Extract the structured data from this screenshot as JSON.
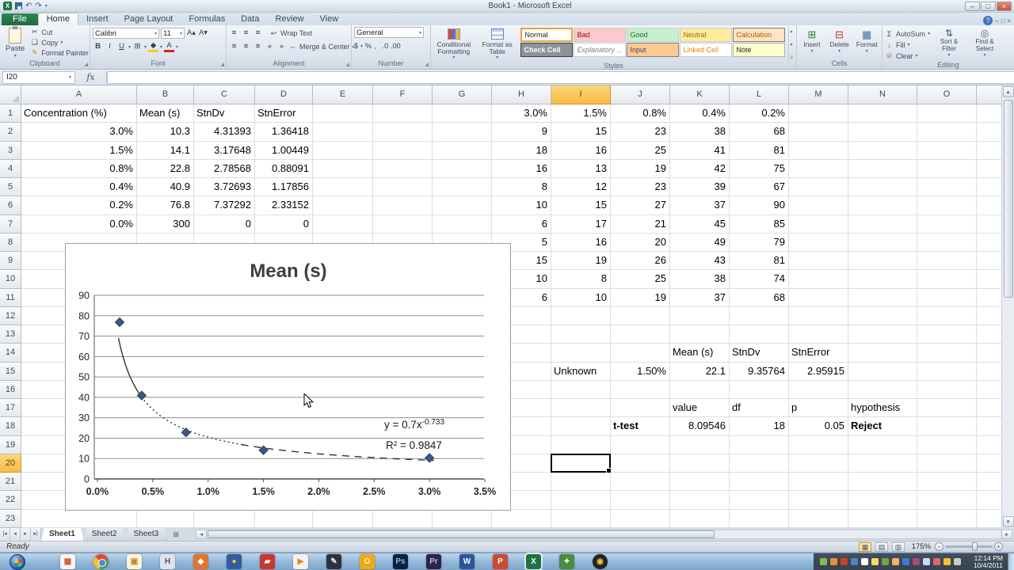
{
  "window": {
    "title": "Book1 - Microsoft Excel"
  },
  "icons": {
    "undo": "↶",
    "redo": "↷",
    "dropdown": "▾",
    "dialog_launcher": "◢",
    "cut": "✂",
    "copy": "❏",
    "format_painter": "✎",
    "bold": "B",
    "italic": "I",
    "underline": "U",
    "borders": "⊞",
    "align": "≡",
    "indent_left": "«",
    "indent_right": "»",
    "wrap": "↩",
    "merge": "⇔",
    "dollar": "$",
    "percent": "%",
    "comma": ",",
    "inc_decimal": ".0",
    "dec_decimal": ".00",
    "autosum": "Σ",
    "fill": "↓",
    "clear": "⊘",
    "sort": "⇅",
    "find": "◎",
    "insert_cells": "⊞",
    "delete_cells": "⊟",
    "format_cells": "▦",
    "help": "?",
    "minimize": "–",
    "maximize": "□",
    "close": "×",
    "up": "▴",
    "down": "▾",
    "left": "◂",
    "right": "▸",
    "tab_first": "|◂",
    "tab_prev": "◂",
    "tab_next": "▸",
    "tab_last": "▸|",
    "add_sheet": "⊞",
    "view_normal": "▦",
    "view_layout": "▤",
    "view_break": "▥",
    "zoom_out": "−",
    "zoom_in": "+",
    "fx": "fx",
    "grow_font": "A▴",
    "shrink_font": "A▾"
  },
  "ribbon": {
    "file_tab": "File",
    "tabs": [
      "Home",
      "Insert",
      "Page Layout",
      "Formulas",
      "Data",
      "Review",
      "View"
    ],
    "active_tab": "Home",
    "clipboard": {
      "paste": "Paste",
      "cut": "Cut",
      "copy": "Copy",
      "format_painter": "Format Painter",
      "label": "Clipboard"
    },
    "font": {
      "name": "Calibri",
      "size": "11",
      "label": "Font"
    },
    "alignment": {
      "wrap": "Wrap Text",
      "merge": "Merge & Center",
      "label": "Alignment"
    },
    "number": {
      "format": "General",
      "label": "Number"
    },
    "styles": {
      "conditional_formatting": "Conditional Formatting",
      "format_as_table": "Format as Table",
      "label": "Styles",
      "gallery": [
        "Normal",
        "Bad",
        "Good",
        "Neutral",
        "Calculation",
        "Check Cell",
        "Explanatory ...",
        "Input",
        "Linked Cell",
        "Note"
      ]
    },
    "cells": {
      "insert": "Insert",
      "delete": "Delete",
      "format": "Format",
      "label": "Cells"
    },
    "editing": {
      "autosum": "AutoSum",
      "fill": "Fill",
      "clear": "Clear",
      "sort": "Sort & Filter",
      "find": "Find & Select",
      "label": "Editing"
    }
  },
  "formula_bar": {
    "name_box": "I20",
    "content": ""
  },
  "grid": {
    "columns": [
      "A",
      "B",
      "C",
      "D",
      "E",
      "F",
      "G",
      "H",
      "I",
      "J",
      "K",
      "L",
      "M",
      "N",
      "O"
    ],
    "visible_rows": 23,
    "selected_cell": "I20",
    "selected_column": "I",
    "selected_row": 20,
    "cells": [
      {
        "c": "A",
        "r": 1,
        "v": "Concentration (%)",
        "a": "l"
      },
      {
        "c": "B",
        "r": 1,
        "v": "Mean (s)",
        "a": "l"
      },
      {
        "c": "C",
        "r": 1,
        "v": "StnDv",
        "a": "l"
      },
      {
        "c": "D",
        "r": 1,
        "v": "StnError",
        "a": "l"
      },
      {
        "c": "A",
        "r": 2,
        "v": "3.0%",
        "a": "r"
      },
      {
        "c": "B",
        "r": 2,
        "v": "10.3",
        "a": "r"
      },
      {
        "c": "C",
        "r": 2,
        "v": "4.31393",
        "a": "r"
      },
      {
        "c": "D",
        "r": 2,
        "v": "1.36418",
        "a": "r"
      },
      {
        "c": "A",
        "r": 3,
        "v": "1.5%",
        "a": "r"
      },
      {
        "c": "B",
        "r": 3,
        "v": "14.1",
        "a": "r"
      },
      {
        "c": "C",
        "r": 3,
        "v": "3.17648",
        "a": "r"
      },
      {
        "c": "D",
        "r": 3,
        "v": "1.00449",
        "a": "r"
      },
      {
        "c": "A",
        "r": 4,
        "v": "0.8%",
        "a": "r"
      },
      {
        "c": "B",
        "r": 4,
        "v": "22.8",
        "a": "r"
      },
      {
        "c": "C",
        "r": 4,
        "v": "2.78568",
        "a": "r"
      },
      {
        "c": "D",
        "r": 4,
        "v": "0.88091",
        "a": "r"
      },
      {
        "c": "A",
        "r": 5,
        "v": "0.4%",
        "a": "r"
      },
      {
        "c": "B",
        "r": 5,
        "v": "40.9",
        "a": "r"
      },
      {
        "c": "C",
        "r": 5,
        "v": "3.72693",
        "a": "r"
      },
      {
        "c": "D",
        "r": 5,
        "v": "1.17856",
        "a": "r"
      },
      {
        "c": "A",
        "r": 6,
        "v": "0.2%",
        "a": "r"
      },
      {
        "c": "B",
        "r": 6,
        "v": "76.8",
        "a": "r"
      },
      {
        "c": "C",
        "r": 6,
        "v": "7.37292",
        "a": "r"
      },
      {
        "c": "D",
        "r": 6,
        "v": "2.33152",
        "a": "r"
      },
      {
        "c": "A",
        "r": 7,
        "v": "0.0%",
        "a": "r"
      },
      {
        "c": "B",
        "r": 7,
        "v": "300",
        "a": "r"
      },
      {
        "c": "C",
        "r": 7,
        "v": "0",
        "a": "r"
      },
      {
        "c": "D",
        "r": 7,
        "v": "0",
        "a": "r"
      },
      {
        "c": "H",
        "r": 1,
        "v": "3.0%",
        "a": "r"
      },
      {
        "c": "I",
        "r": 1,
        "v": "1.5%",
        "a": "r"
      },
      {
        "c": "J",
        "r": 1,
        "v": "0.8%",
        "a": "r"
      },
      {
        "c": "K",
        "r": 1,
        "v": "0.4%",
        "a": "r"
      },
      {
        "c": "L",
        "r": 1,
        "v": "0.2%",
        "a": "r"
      },
      {
        "c": "H",
        "r": 2,
        "v": "9",
        "a": "r"
      },
      {
        "c": "I",
        "r": 2,
        "v": "15",
        "a": "r"
      },
      {
        "c": "J",
        "r": 2,
        "v": "23",
        "a": "r"
      },
      {
        "c": "K",
        "r": 2,
        "v": "38",
        "a": "r"
      },
      {
        "c": "L",
        "r": 2,
        "v": "68",
        "a": "r"
      },
      {
        "c": "H",
        "r": 3,
        "v": "18",
        "a": "r"
      },
      {
        "c": "I",
        "r": 3,
        "v": "16",
        "a": "r"
      },
      {
        "c": "J",
        "r": 3,
        "v": "25",
        "a": "r"
      },
      {
        "c": "K",
        "r": 3,
        "v": "41",
        "a": "r"
      },
      {
        "c": "L",
        "r": 3,
        "v": "81",
        "a": "r"
      },
      {
        "c": "H",
        "r": 4,
        "v": "16",
        "a": "r"
      },
      {
        "c": "I",
        "r": 4,
        "v": "13",
        "a": "r"
      },
      {
        "c": "J",
        "r": 4,
        "v": "19",
        "a": "r"
      },
      {
        "c": "K",
        "r": 4,
        "v": "42",
        "a": "r"
      },
      {
        "c": "L",
        "r": 4,
        "v": "75",
        "a": "r"
      },
      {
        "c": "H",
        "r": 5,
        "v": "8",
        "a": "r"
      },
      {
        "c": "I",
        "r": 5,
        "v": "12",
        "a": "r"
      },
      {
        "c": "J",
        "r": 5,
        "v": "23",
        "a": "r"
      },
      {
        "c": "K",
        "r": 5,
        "v": "39",
        "a": "r"
      },
      {
        "c": "L",
        "r": 5,
        "v": "67",
        "a": "r"
      },
      {
        "c": "H",
        "r": 6,
        "v": "10",
        "a": "r"
      },
      {
        "c": "I",
        "r": 6,
        "v": "15",
        "a": "r"
      },
      {
        "c": "J",
        "r": 6,
        "v": "27",
        "a": "r"
      },
      {
        "c": "K",
        "r": 6,
        "v": "37",
        "a": "r"
      },
      {
        "c": "L",
        "r": 6,
        "v": "90",
        "a": "r"
      },
      {
        "c": "H",
        "r": 7,
        "v": "6",
        "a": "r"
      },
      {
        "c": "I",
        "r": 7,
        "v": "17",
        "a": "r"
      },
      {
        "c": "J",
        "r": 7,
        "v": "21",
        "a": "r"
      },
      {
        "c": "K",
        "r": 7,
        "v": "45",
        "a": "r"
      },
      {
        "c": "L",
        "r": 7,
        "v": "85",
        "a": "r"
      },
      {
        "c": "H",
        "r": 8,
        "v": "5",
        "a": "r"
      },
      {
        "c": "I",
        "r": 8,
        "v": "16",
        "a": "r"
      },
      {
        "c": "J",
        "r": 8,
        "v": "20",
        "a": "r"
      },
      {
        "c": "K",
        "r": 8,
        "v": "49",
        "a": "r"
      },
      {
        "c": "L",
        "r": 8,
        "v": "79",
        "a": "r"
      },
      {
        "c": "H",
        "r": 9,
        "v": "15",
        "a": "r"
      },
      {
        "c": "I",
        "r": 9,
        "v": "19",
        "a": "r"
      },
      {
        "c": "J",
        "r": 9,
        "v": "26",
        "a": "r"
      },
      {
        "c": "K",
        "r": 9,
        "v": "43",
        "a": "r"
      },
      {
        "c": "L",
        "r": 9,
        "v": "81",
        "a": "r"
      },
      {
        "c": "H",
        "r": 10,
        "v": "10",
        "a": "r"
      },
      {
        "c": "I",
        "r": 10,
        "v": "8",
        "a": "r"
      },
      {
        "c": "J",
        "r": 10,
        "v": "25",
        "a": "r"
      },
      {
        "c": "K",
        "r": 10,
        "v": "38",
        "a": "r"
      },
      {
        "c": "L",
        "r": 10,
        "v": "74",
        "a": "r"
      },
      {
        "c": "H",
        "r": 11,
        "v": "6",
        "a": "r"
      },
      {
        "c": "I",
        "r": 11,
        "v": "10",
        "a": "r"
      },
      {
        "c": "J",
        "r": 11,
        "v": "19",
        "a": "r"
      },
      {
        "c": "K",
        "r": 11,
        "v": "37",
        "a": "r"
      },
      {
        "c": "L",
        "r": 11,
        "v": "68",
        "a": "r"
      },
      {
        "c": "K",
        "r": 14,
        "v": "Mean (s)",
        "a": "l"
      },
      {
        "c": "L",
        "r": 14,
        "v": "StnDv",
        "a": "l"
      },
      {
        "c": "M",
        "r": 14,
        "v": "StnError",
        "a": "l"
      },
      {
        "c": "I",
        "r": 15,
        "v": "Unknown",
        "a": "l"
      },
      {
        "c": "J",
        "r": 15,
        "v": "1.50%",
        "a": "r"
      },
      {
        "c": "K",
        "r": 15,
        "v": "22.1",
        "a": "r"
      },
      {
        "c": "L",
        "r": 15,
        "v": "9.35764",
        "a": "r"
      },
      {
        "c": "M",
        "r": 15,
        "v": "2.95915",
        "a": "r"
      },
      {
        "c": "K",
        "r": 17,
        "v": "value",
        "a": "l"
      },
      {
        "c": "L",
        "r": 17,
        "v": "df",
        "a": "l"
      },
      {
        "c": "M",
        "r": 17,
        "v": "p",
        "a": "l"
      },
      {
        "c": "N",
        "r": 17,
        "v": "hypothesis",
        "a": "l"
      },
      {
        "c": "J",
        "r": 18,
        "v": "t-test",
        "a": "l",
        "b": 1
      },
      {
        "c": "K",
        "r": 18,
        "v": "8.09546",
        "a": "r"
      },
      {
        "c": "L",
        "r": 18,
        "v": "18",
        "a": "r"
      },
      {
        "c": "M",
        "r": 18,
        "v": "0.05",
        "a": "r"
      },
      {
        "c": "N",
        "r": 18,
        "v": "Reject",
        "a": "l",
        "b": 1
      }
    ]
  },
  "chart_data": {
    "type": "scatter",
    "title": "Mean (s)",
    "series": [
      {
        "name": "Mean (s)",
        "x_percent": [
          0.2,
          0.4,
          0.8,
          1.5,
          3.0
        ],
        "y": [
          76.8,
          40.9,
          22.8,
          14.1,
          10.3
        ]
      }
    ],
    "xlim_percent": [
      0,
      3.5
    ],
    "ylim": [
      0,
      90
    ],
    "x_tick_labels": [
      "0.0%",
      "0.5%",
      "1.0%",
      "1.5%",
      "2.0%",
      "2.5%",
      "3.0%",
      "3.5%"
    ],
    "y_tick_values": [
      0,
      10,
      20,
      30,
      40,
      50,
      60,
      70,
      80,
      90
    ],
    "gridlines": "horizontal",
    "legend": "none",
    "marker": {
      "shape": "diamond",
      "color": "#3a5a83"
    },
    "trendline": {
      "type": "power",
      "equation_base": "y = 0.7x",
      "equation_exponent": "-0.733",
      "r_squared_label": "R² = 0.9847"
    }
  },
  "sheet_tabs": {
    "tabs": [
      "Sheet1",
      "Sheet2",
      "Sheet3"
    ],
    "active": "Sheet1"
  },
  "status_bar": {
    "mode": "Ready",
    "zoom": "175%"
  },
  "taskbar": {
    "apps": [
      {
        "name": "pinned-app-grid",
        "glyph": "▦",
        "bg": "#f5f5f5",
        "fg": "#d35230"
      },
      {
        "name": "chrome",
        "special": "chrome"
      },
      {
        "name": "photo-app",
        "glyph": "▣",
        "bg": "#fdf3d7",
        "fg": "#b98a2f"
      },
      {
        "name": "video-app",
        "glyph": "H",
        "bg": "#dfe3ec",
        "fg": "#4a4f66"
      },
      {
        "name": "orange-app",
        "glyph": "◆",
        "bg": "#e0752f",
        "fg": "#ffffff"
      },
      {
        "name": "blue-app",
        "glyph": "●",
        "bg": "#2f5f9e",
        "fg": "#f4c542"
      },
      {
        "name": "red-app",
        "glyph": "▰",
        "bg": "#c23b2e",
        "fg": "#ffffff"
      },
      {
        "name": "media-player-app",
        "glyph": "▶",
        "bg": "#f2f2f2",
        "fg": "#e8861c"
      },
      {
        "name": "dark-app",
        "glyph": "✎",
        "bg": "#2e3140",
        "fg": "#e8e8f0"
      },
      {
        "name": "outlook",
        "glyph": "O",
        "bg": "#f3a712",
        "fg": "#ffffff"
      },
      {
        "name": "photoshop",
        "glyph": "Ps",
        "bg": "#0f1f3d",
        "fg": "#8ab4f8"
      },
      {
        "name": "premiere",
        "glyph": "Pr",
        "bg": "#2d2545",
        "fg": "#c7b9f2"
      },
      {
        "name": "word",
        "glyph": "W",
        "bg": "#2a5699",
        "fg": "#ffffff"
      },
      {
        "name": "powerpoint",
        "glyph": "P",
        "bg": "#cb4a32",
        "fg": "#ffffff"
      },
      {
        "name": "excel",
        "glyph": "X",
        "bg": "#1f7244",
        "fg": "#ffffff",
        "active": true
      },
      {
        "name": "green-app",
        "glyph": "✦",
        "bg": "#4c8c3f",
        "fg": "#ffffff"
      },
      {
        "name": "dark-circle-app",
        "glyph": "◉",
        "bg": "#1f2429",
        "fg": "#f1c232",
        "round": true
      }
    ],
    "tray_colors": [
      "#7fbf4d",
      "#e69138",
      "#cc4125",
      "#4a86c8",
      "#ffffff",
      "#ffd966",
      "#6aa84f",
      "#f6b26b",
      "#3c78d8",
      "#a64d79",
      "#c9daf8",
      "#e06666",
      "#f1c232",
      "#cccccc"
    ],
    "clock": {
      "time": "12:14 PM",
      "date": "10/4/2011"
    }
  }
}
